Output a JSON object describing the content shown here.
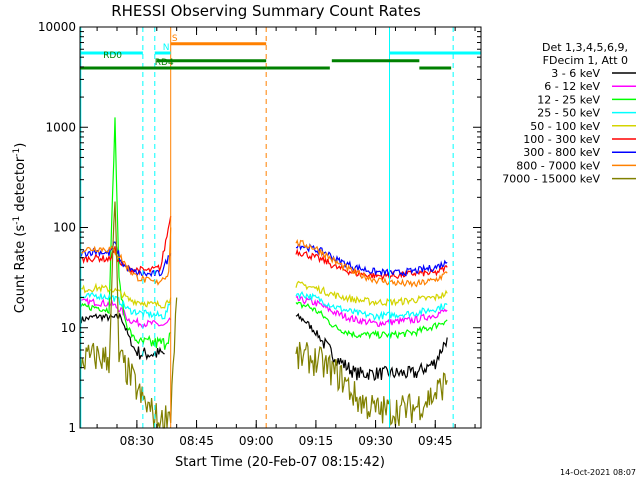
{
  "chart_data": {
    "type": "line",
    "title": "RHESSI Observing Summary Count Rates",
    "xlabel": "Start Time (20-Feb-07 08:15:42)",
    "ylabel": "Count Rate (s-1 detector-1)",
    "ylabel_parts": [
      "Count Rate (s",
      "-1",
      " detector",
      "-1",
      ")"
    ],
    "yscale": "log",
    "ylim": [
      1,
      10000
    ],
    "xlim": [
      15.7,
      116.5
    ],
    "x_unit": "minutes after 08:00",
    "yticks": [
      {
        "v": 1,
        "label": "1"
      },
      {
        "v": 10,
        "label": "10"
      },
      {
        "v": 100,
        "label": "100"
      },
      {
        "v": 1000,
        "label": "1000"
      },
      {
        "v": 10000,
        "label": "10000"
      }
    ],
    "xticks": [
      {
        "v": 30,
        "label": "08:30"
      },
      {
        "v": 45,
        "label": "08:45"
      },
      {
        "v": 60,
        "label": "09:00"
      },
      {
        "v": 75,
        "label": "09:15"
      },
      {
        "v": 90,
        "label": "09:30"
      },
      {
        "v": 105,
        "label": "09:45"
      }
    ],
    "legend": {
      "header": [
        "Det 1,3,4,5,6,9,",
        "FDecim 1, Att 0"
      ],
      "placement": "right",
      "items": [
        {
          "label": "3 - 6 keV",
          "color": "#000000"
        },
        {
          "label": "6 - 12 keV",
          "color": "#ff00ff"
        },
        {
          "label": "12 - 25 keV",
          "color": "#00ff00"
        },
        {
          "label": "25 - 50 keV",
          "color": "#00ffff"
        },
        {
          "label": "50 - 100 keV",
          "color": "#d4d400"
        },
        {
          "label": "100 - 300 keV",
          "color": "#ff0000"
        },
        {
          "label": "300 - 800 keV",
          "color": "#0000ff"
        },
        {
          "label": "800 - 7000 keV",
          "color": "#ff8000"
        },
        {
          "label": "7000 - 15000 keV",
          "color": "#808000"
        }
      ]
    },
    "series": [
      {
        "name": "3 - 6 keV",
        "color": "#000000",
        "segments": [
          {
            "x": [
              16,
              20,
              24,
              26,
              28,
              29.5,
              31,
              34,
              37
            ],
            "y": [
              12,
              13,
              12.5,
              13,
              8,
              6,
              5.5,
              5.5,
              5.5
            ]
          },
          {
            "x": [
              70,
              72,
              75,
              77,
              80,
              85,
              90,
              95,
              100,
              105,
              108
            ],
            "y": [
              13,
              12,
              9,
              7,
              5,
              3.5,
              3.5,
              3.5,
              3.5,
              4.5,
              8
            ]
          }
        ]
      },
      {
        "name": "6 - 12 keV",
        "color": "#ff00ff",
        "segments": [
          {
            "x": [
              16,
              20,
              24,
              26,
              28,
              31,
              34,
              37,
              38.5
            ],
            "y": [
              18,
              18,
              17,
              15,
              12,
              11,
              11,
              10.5,
              12
            ]
          },
          {
            "x": [
              70,
              73,
              76,
              80,
              85,
              90,
              95,
              100,
              105,
              108
            ],
            "y": [
              19,
              18.5,
              17,
              14,
              12,
              11,
              11.5,
              12,
              13.5,
              15
            ]
          }
        ]
      },
      {
        "name": "12 - 25 keV",
        "color": "#00ff00",
        "segments": [
          {
            "x": [
              16,
              20,
              23,
              24.5,
              25.5,
              27,
              29,
              31,
              34,
              37,
              38.5
            ],
            "y": [
              16,
              16,
              15,
              1200,
              30,
              12,
              8,
              7,
              7,
              7,
              9
            ]
          },
          {
            "x": [
              70,
              73,
              76,
              80,
              85,
              90,
              95,
              100,
              105,
              108
            ],
            "y": [
              17,
              16.5,
              14,
              10,
              8.5,
              8.5,
              8.5,
              9,
              10.5,
              12
            ]
          }
        ]
      },
      {
        "name": "25 - 50 keV",
        "color": "#00ffff",
        "segments": [
          {
            "x": [
              16,
              20,
              24,
              26,
              28,
              31,
              34,
              37,
              38.5
            ],
            "y": [
              20,
              21,
              20,
              18,
              15,
              14,
              13.5,
              13,
              18
            ]
          },
          {
            "x": [
              70,
              73,
              76,
              80,
              85,
              90,
              95,
              100,
              105,
              108
            ],
            "y": [
              22,
              21,
              19,
              16,
              14,
              13,
              13.5,
              14,
              15.5,
              17
            ]
          }
        ]
      },
      {
        "name": "50 - 100 keV",
        "color": "#d4d400",
        "segments": [
          {
            "x": [
              16,
              20,
              24,
              26,
              28,
              31,
              34,
              37,
              38.5
            ],
            "y": [
              24,
              25,
              24,
              22,
              19,
              18,
              17,
              17,
              20
            ]
          },
          {
            "x": [
              70,
              73,
              76,
              80,
              85,
              90,
              95,
              100,
              105,
              108
            ],
            "y": [
              27,
              26,
              24,
              21,
              19,
              18,
              18,
              19,
              20,
              22
            ]
          }
        ]
      },
      {
        "name": "100 - 300 keV",
        "color": "#ff0000",
        "segments": [
          {
            "x": [
              16,
              20,
              23,
              24.5,
              25.5,
              27,
              28.5,
              30,
              33,
              36,
              38.5
            ],
            "y": [
              48,
              50,
              48,
              60,
              45,
              40,
              38,
              38,
              37,
              40,
              130
            ]
          },
          {
            "x": [
              70,
              72,
              75,
              78,
              80,
              85,
              90,
              95,
              100,
              105,
              108
            ],
            "y": [
              58,
              55,
              50,
              45,
              40,
              35,
              33,
              33,
              35,
              35,
              40
            ]
          }
        ]
      },
      {
        "name": "300 - 800 keV",
        "color": "#0000ff",
        "segments": [
          {
            "x": [
              16,
              20,
              23,
              24.5,
              26,
              28,
              30,
              33,
              36,
              38.5
            ],
            "y": [
              55,
              58,
              55,
              70,
              45,
              38,
              35,
              34,
              35,
              55
            ]
          },
          {
            "x": [
              70,
              72,
              75,
              78,
              80,
              85,
              90,
              95,
              100,
              105,
              108
            ],
            "y": [
              68,
              65,
              60,
              55,
              48,
              40,
              36,
              35,
              37,
              40,
              45
            ]
          }
        ]
      },
      {
        "name": "800 - 7000 keV",
        "color": "#ff8000",
        "segments": [
          {
            "x": [
              16,
              20,
              24,
              26,
              28,
              30,
              32,
              35,
              38,
              38.5
            ],
            "y": [
              60,
              62,
              60,
              50,
              38,
              32,
              30,
              28,
              35,
              100
            ]
          },
          {
            "x": [
              70,
              72,
              75,
              77,
              80,
              85,
              90,
              95,
              100,
              105,
              108
            ],
            "y": [
              70,
              68,
              62,
              55,
              45,
              35,
              30,
              28,
              27,
              30,
              35
            ]
          }
        ]
      },
      {
        "name": "7000 - 15000 keV",
        "color": "#808000",
        "segments": [
          {
            "x": [
              16,
              20,
              23,
              24.5,
              25.5,
              27,
              29,
              31,
              34,
              36,
              38.5,
              40
            ],
            "y": [
              4.8,
              5.2,
              4.8,
              180,
              5,
              4,
              3,
              2,
              1.4,
              1.1,
              1.5,
              20
            ]
          },
          {
            "x": [
              70,
              73,
              76,
              80,
              82,
              85,
              90,
              95,
              100,
              105,
              108
            ],
            "y": [
              5,
              5,
              4.5,
              3.5,
              3,
              2,
              1.5,
              1.5,
              1.6,
              2.2,
              3
            ]
          }
        ]
      }
    ],
    "state_bars": [
      {
        "label": "S",
        "color": "#ff8000",
        "y": 6800,
        "label_x": 38.8,
        "segments": [
          [
            38.5,
            62.5
          ]
        ]
      },
      {
        "label": "N",
        "color": "#00ffff",
        "y": 5500,
        "label_x": 36.5,
        "segments": [
          [
            15.7,
            31.5
          ],
          [
            34.5,
            38.5
          ],
          [
            93.5,
            116.5
          ]
        ]
      },
      {
        "label": "RD0",
        "color": "#008000",
        "y": 4600,
        "label_x": 21.5,
        "segments": [
          [
            35,
            62.5
          ],
          [
            79,
            101
          ]
        ]
      },
      {
        "label": "RD4",
        "color": "#008000",
        "y": 3900,
        "label_x": 34.5,
        "segments": [
          [
            15.7,
            62.5
          ],
          [
            62.5,
            78.5
          ],
          [
            101,
            109
          ]
        ]
      }
    ],
    "vertical_markers": [
      {
        "x": 15.9,
        "color": "#00ffff",
        "style": "solid"
      },
      {
        "x": 31.5,
        "color": "#00ffff",
        "style": "dashed"
      },
      {
        "x": 34.5,
        "color": "#00ffff",
        "style": "dashed"
      },
      {
        "x": 38.5,
        "color": "#ff8000",
        "style": "solid"
      },
      {
        "x": 62.5,
        "color": "#ff8000",
        "style": "dashed"
      },
      {
        "x": 93.5,
        "color": "#00ffff",
        "style": "solid"
      },
      {
        "x": 109.5,
        "color": "#00ffff",
        "style": "dashed"
      }
    ]
  },
  "footer": {
    "timestamp": "14-Oct-2021 08:07"
  }
}
